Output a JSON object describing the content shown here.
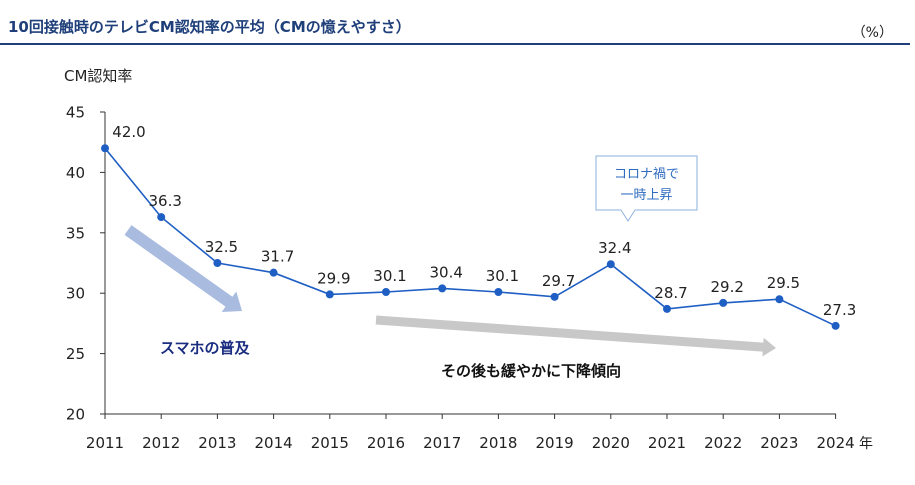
{
  "header": {
    "title": "10回接触時のテレビCM認知率の平均（CMの憶えやすさ）",
    "unit": "（%）"
  },
  "chart_data": {
    "type": "line",
    "title": "10回接触時のテレビCM認知率の平均（CMの憶えやすさ）",
    "ylabel": "CM認知率",
    "xlabel": "年",
    "unit": "（%）",
    "categories": [
      "2011",
      "2012",
      "2013",
      "2014",
      "2015",
      "2016",
      "2017",
      "2018",
      "2019",
      "2020",
      "2021",
      "2022",
      "2023",
      "2024"
    ],
    "values": [
      42.0,
      36.3,
      32.5,
      31.7,
      29.9,
      30.1,
      30.4,
      30.1,
      29.7,
      32.4,
      28.7,
      29.2,
      29.5,
      27.3
    ],
    "data_labels": [
      "42.0",
      "36.3",
      "32.5",
      "31.7",
      "29.9",
      "30.1",
      "30.4",
      "30.1",
      "29.7",
      "32.4",
      "28.7",
      "29.2",
      "29.5",
      "27.3"
    ],
    "y_ticks": [
      "20",
      "25",
      "30",
      "35",
      "40",
      "45"
    ],
    "ylim": [
      20,
      45
    ],
    "grid": false,
    "annotations": {
      "smartphone": "スマホの普及",
      "decline": "その後も緩やかに下降傾向",
      "covid_line1": "コロナ禍で",
      "covid_line2": "一時上昇"
    },
    "colors": {
      "line": "#1f5fc4",
      "arrow_down": "#a9bce0",
      "arrow_flat": "#c8c8c8",
      "annotation_text": "#1a2d80",
      "callout_border": "#8eb2dc",
      "callout_text": "#2e6bc0"
    }
  }
}
